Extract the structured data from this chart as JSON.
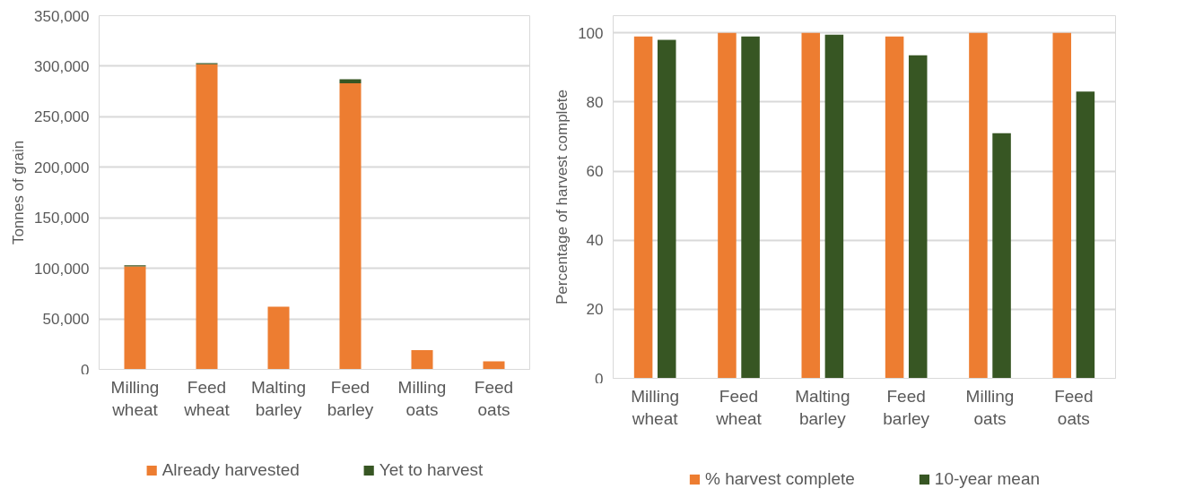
{
  "chart_data": [
    {
      "type": "bar",
      "stacked": true,
      "ylabel": "Tonnes of grain",
      "categories": [
        "Milling wheat",
        "Feed wheat",
        "Malting barley",
        "Feed barley",
        "Milling oats",
        "Feed oats"
      ],
      "series": [
        {
          "name": "Already harvested",
          "color": "#ed7d31",
          "values": [
            102000,
            302000,
            62000,
            283000,
            19000,
            8000
          ]
        },
        {
          "name": "Yet to harvest",
          "color": "#375623",
          "values": [
            1000,
            1000,
            0,
            4000,
            0,
            0
          ]
        }
      ],
      "ylim": [
        0,
        350000
      ],
      "yticks": [
        {
          "value": 0,
          "label": "0"
        },
        {
          "value": 50000,
          "label": "50,000"
        },
        {
          "value": 100000,
          "label": "100,000"
        },
        {
          "value": 150000,
          "label": "150,000"
        },
        {
          "value": 200000,
          "label": "200,000"
        },
        {
          "value": 250000,
          "label": "250,000"
        },
        {
          "value": 300000,
          "label": "300,000"
        },
        {
          "value": 350000,
          "label": "350,000"
        }
      ],
      "grid": "y",
      "legend": "bottom"
    },
    {
      "type": "bar",
      "ylabel": "Percentage of harvest complete",
      "categories": [
        "Milling wheat",
        "Feed wheat",
        "Malting barley",
        "Feed barley",
        "Milling oats",
        "Feed oats"
      ],
      "series": [
        {
          "name": "% harvest complete",
          "color": "#ed7d31",
          "values": [
            99,
            100,
            100,
            99,
            100,
            100
          ]
        },
        {
          "name": "10-year mean",
          "color": "#375623",
          "values": [
            98,
            99,
            99.5,
            93.5,
            71,
            83
          ]
        }
      ],
      "ylim": [
        0,
        105
      ],
      "yticks": [
        0,
        20,
        40,
        60,
        80,
        100
      ],
      "grid": "y",
      "legend": "bottom"
    }
  ]
}
